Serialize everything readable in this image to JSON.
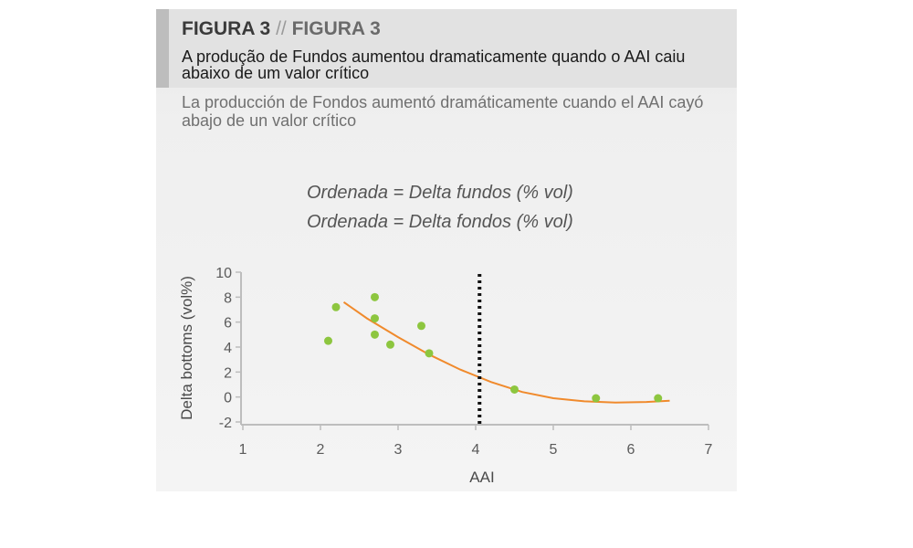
{
  "figure": {
    "label": "FIGURA 3",
    "separator": "//",
    "label_alt": "FIGURA 3",
    "subtitle_pt": "A produção de Fundos aumentou dramaticamente quando o AAI caiu abaixo de um valor crítico",
    "subtitle_es": "La producción de Fondos aumentó dramáticamente cuando el AAI cayó abajo de un valor crítico",
    "annotation_1": "Ordenada = Delta fundos (% vol)",
    "annotation_2": "Ordenada = Delta fondos (% vol)"
  },
  "colors": {
    "points": "#8dc63f",
    "trend": "#f08a2c",
    "threshold": "#111111"
  },
  "chart_data": {
    "type": "scatter",
    "xlabel": "AAI",
    "ylabel": "Delta bottoms (vol%)",
    "xlim": [
      1,
      7
    ],
    "ylim": [
      -2,
      10
    ],
    "xticks": [
      "1",
      "2",
      "3",
      "4",
      "5",
      "6",
      "7"
    ],
    "yticks": [
      "10",
      "8",
      "6",
      "4",
      "2",
      "0",
      "-2"
    ],
    "points": [
      {
        "x": 2.1,
        "y": 4.5
      },
      {
        "x": 2.2,
        "y": 7.2
      },
      {
        "x": 2.7,
        "y": 8.0
      },
      {
        "x": 2.7,
        "y": 6.3
      },
      {
        "x": 2.7,
        "y": 5.0
      },
      {
        "x": 2.9,
        "y": 4.2
      },
      {
        "x": 3.3,
        "y": 5.7
      },
      {
        "x": 3.4,
        "y": 3.5
      },
      {
        "x": 4.5,
        "y": 0.6
      },
      {
        "x": 5.55,
        "y": -0.1
      },
      {
        "x": 6.35,
        "y": -0.1
      }
    ],
    "trend_line": {
      "x": [
        2.3,
        2.6,
        3.0,
        3.4,
        3.8,
        4.2,
        4.6,
        5.0,
        5.4,
        5.8,
        6.2,
        6.5
      ],
      "y": [
        7.6,
        6.3,
        4.8,
        3.4,
        2.2,
        1.2,
        0.4,
        -0.1,
        -0.35,
        -0.45,
        -0.4,
        -0.3
      ]
    },
    "threshold_x": 4.05,
    "grid": false
  }
}
